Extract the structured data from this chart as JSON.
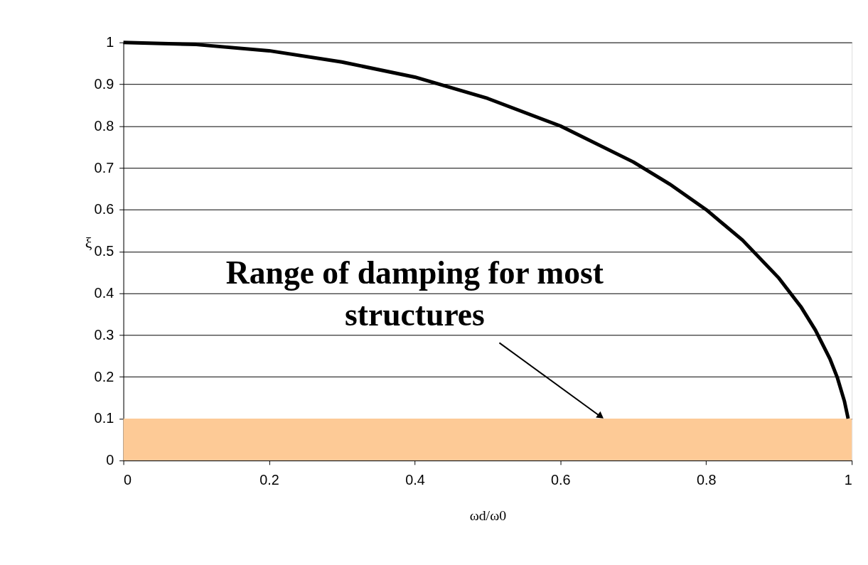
{
  "chart_data": {
    "type": "line",
    "xlabel": "ωd/ω0",
    "ylabel": "ξ",
    "x": [
      0,
      0.1,
      0.2,
      0.3,
      0.4,
      0.5,
      0.6,
      0.7,
      0.75,
      0.8,
      0.85,
      0.9,
      0.93,
      0.95,
      0.97,
      0.98,
      0.99,
      0.995
    ],
    "series": [
      {
        "color": "#000000",
        "values": [
          1,
          0.995,
          0.98,
          0.953,
          0.917,
          0.866,
          0.8,
          0.714,
          0.661,
          0.6,
          0.527,
          0.436,
          0.368,
          0.312,
          0.243,
          0.199,
          0.141,
          0.1
        ]
      }
    ],
    "xlim": [
      0,
      1
    ],
    "xticks": [
      0,
      0.2,
      0.4,
      0.6,
      0.8,
      1
    ],
    "ylim": [
      0,
      1
    ],
    "yticks": [
      0,
      0.1,
      0.2,
      0.3,
      0.4,
      0.5,
      0.6,
      0.7,
      0.8,
      0.9,
      1
    ],
    "grid": "y",
    "marker": "none",
    "line_style": "solid",
    "bands": [
      {
        "axis": "y",
        "from": 0,
        "to": 0.1,
        "color": "#fdca96"
      }
    ],
    "annotations": [
      {
        "text": "Range of damping for most\nstructures",
        "x": 0.66,
        "y": 0.1
      }
    ]
  }
}
